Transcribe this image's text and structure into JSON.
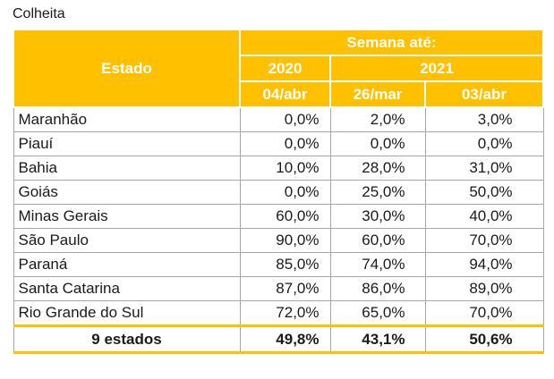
{
  "caption": "Colheita",
  "header": {
    "state_label": "Estado",
    "period_label": "Semana até:",
    "year_2020": "2020",
    "year_2021": "2021",
    "dates": [
      "04/abr",
      "26/mar",
      "03/abr"
    ]
  },
  "rows": [
    {
      "state": "Maranhão",
      "v2020": "0,0%",
      "v2021a": "2,0%",
      "v2021b": "3,0%"
    },
    {
      "state": "Piauí",
      "v2020": "0,0%",
      "v2021a": "0,0%",
      "v2021b": "0,0%"
    },
    {
      "state": "Bahia",
      "v2020": "10,0%",
      "v2021a": "28,0%",
      "v2021b": "31,0%"
    },
    {
      "state": "Goiás",
      "v2020": "0,0%",
      "v2021a": "25,0%",
      "v2021b": "50,0%"
    },
    {
      "state": "Minas Gerais",
      "v2020": "60,0%",
      "v2021a": "30,0%",
      "v2021b": "40,0%"
    },
    {
      "state": "São Paulo",
      "v2020": "90,0%",
      "v2021a": "60,0%",
      "v2021b": "70,0%"
    },
    {
      "state": "Paraná",
      "v2020": "85,0%",
      "v2021a": "74,0%",
      "v2021b": "94,0%"
    },
    {
      "state": "Santa Catarina",
      "v2020": "87,0%",
      "v2021a": "86,0%",
      "v2021b": "89,0%"
    },
    {
      "state": "Rio Grande do Sul",
      "v2020": "72,0%",
      "v2021a": "65,0%",
      "v2021b": "70,0%"
    }
  ],
  "total": {
    "state": "9 estados",
    "v2020": "49,8%",
    "v2021a": "43,1%",
    "v2021b": "50,6%"
  },
  "colors": {
    "header_bg": "#ffc000",
    "header_text": "#ffffff",
    "grid": "#a6a6a6"
  }
}
